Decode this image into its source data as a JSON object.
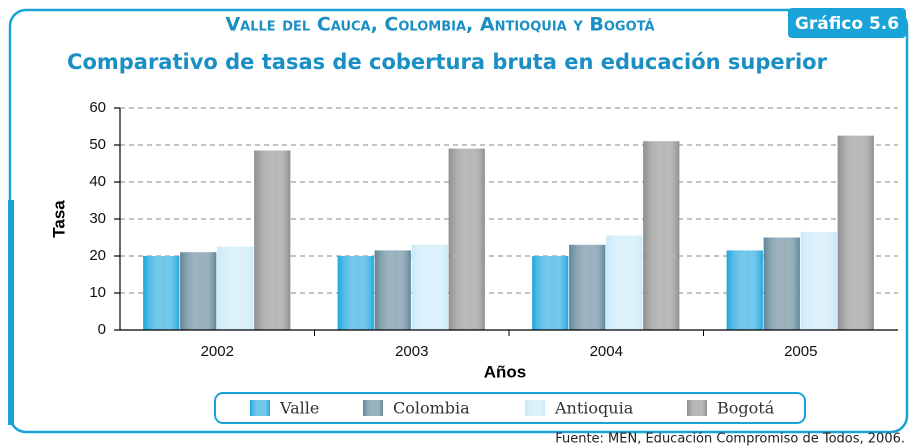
{
  "chart_data": {
    "type": "bar",
    "badge": "Gráfico 5.6",
    "title": "Valle del Cauca, Colombia, Antioquia y Bogotá",
    "subtitle": "Comparativo de tasas de cobertura bruta en educación superior",
    "x_label": "Años",
    "y_label": "Tasa",
    "categories": [
      "2002",
      "2003",
      "2004",
      "2005"
    ],
    "series": [
      {
        "name": "Valle",
        "color": "#1ea6df",
        "values": [
          20,
          20,
          20,
          21.5
        ]
      },
      {
        "name": "Colombia",
        "color": "#5f8497",
        "values": [
          21,
          21.5,
          23,
          25
        ]
      },
      {
        "name": "Antioquia",
        "color": "#c9e9f8",
        "values": [
          22.5,
          23,
          25.5,
          26.5
        ]
      },
      {
        "name": "Bogotá",
        "color": "#8e8e8e",
        "values": [
          48.5,
          49,
          51,
          52.5
        ]
      }
    ],
    "ylim": [
      0,
      60
    ],
    "yticks": [
      0,
      10,
      20,
      30,
      40,
      50,
      60
    ],
    "grid": true,
    "source": "Fuente: MEN, Educación Compromiso de Todos, 2006."
  }
}
